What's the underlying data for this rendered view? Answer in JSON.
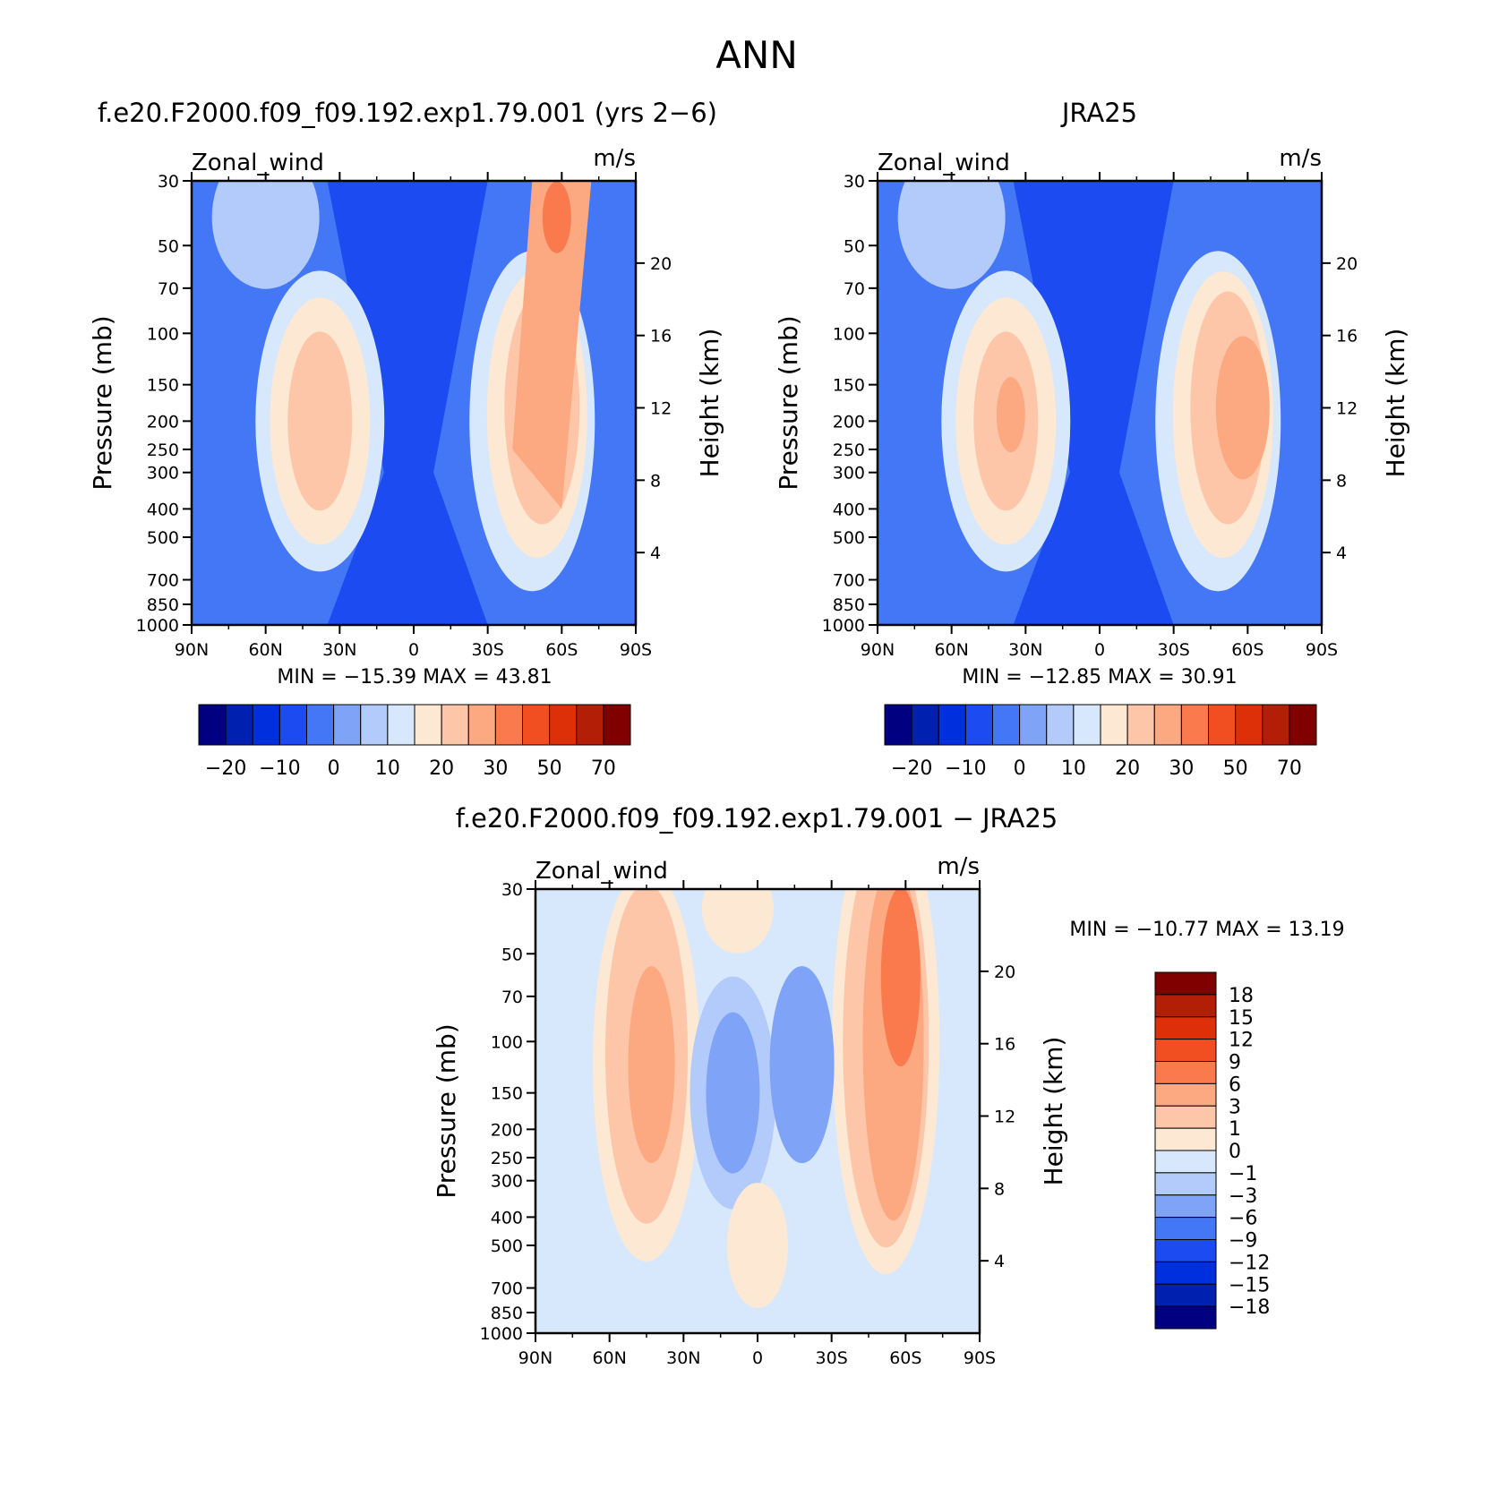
{
  "figure_title": "ANN",
  "chart_data": [
    {
      "type": "heatmap",
      "title": "f.e20.F2000.f09_f09.192.exp1.79.001 (yrs 2−6)",
      "variable_label": "Zonal_wind",
      "units_label": "m/s",
      "xlabel": "",
      "ylabel": "Pressure (mb)",
      "y2label": "Height (km)",
      "x_ticks": [
        "90N",
        "60N",
        "30N",
        "0",
        "30S",
        "60S",
        "90S"
      ],
      "y_ticks": [
        "30",
        "50",
        "70",
        "100",
        "150",
        "200",
        "250",
        "300",
        "400",
        "500",
        "700",
        "850",
        "1000"
      ],
      "y2_ticks": [
        "20",
        "16",
        "12",
        "8",
        "4"
      ],
      "stats_text": "MIN = −15.39   MAX =  43.81",
      "min": -15.39,
      "max": 43.81,
      "colorbar": {
        "orientation": "horizontal",
        "tick_labels": [
          "−20",
          "−10",
          "0",
          "10",
          "20",
          "30",
          "50",
          "70"
        ],
        "colors": [
          "#000080",
          "#0021b0",
          "#0030de",
          "#1c4bf2",
          "#4477f5",
          "#7ea3f7",
          "#b3cbfa",
          "#d8e8fc",
          "#fde8d4",
          "#fdc6a8",
          "#fca881",
          "#fa7a4e",
          "#f14f22",
          "#dd3008",
          "#b21f06",
          "#800000"
        ]
      }
    },
    {
      "type": "heatmap",
      "title": "JRA25",
      "variable_label": "Zonal_wind",
      "units_label": "m/s",
      "xlabel": "",
      "ylabel": "Pressure (mb)",
      "y2label": "Height (km)",
      "x_ticks": [
        "90N",
        "60N",
        "30N",
        "0",
        "30S",
        "60S",
        "90S"
      ],
      "y_ticks": [
        "30",
        "50",
        "70",
        "100",
        "150",
        "200",
        "250",
        "300",
        "400",
        "500",
        "700",
        "850",
        "1000"
      ],
      "y2_ticks": [
        "20",
        "16",
        "12",
        "8",
        "4"
      ],
      "stats_text": "MIN = −12.85   MAX =  30.91",
      "min": -12.85,
      "max": 30.91,
      "colorbar": {
        "orientation": "horizontal",
        "tick_labels": [
          "−20",
          "−10",
          "0",
          "10",
          "20",
          "30",
          "50",
          "70"
        ],
        "colors": [
          "#000080",
          "#0021b0",
          "#0030de",
          "#1c4bf2",
          "#4477f5",
          "#7ea3f7",
          "#b3cbfa",
          "#d8e8fc",
          "#fde8d4",
          "#fdc6a8",
          "#fca881",
          "#fa7a4e",
          "#f14f22",
          "#dd3008",
          "#b21f06",
          "#800000"
        ]
      }
    },
    {
      "type": "heatmap",
      "title": "f.e20.F2000.f09_f09.192.exp1.79.001 − JRA25",
      "variable_label": "Zonal_wind",
      "units_label": "m/s",
      "xlabel": "",
      "ylabel": "Pressure (mb)",
      "y2label": "Height (km)",
      "x_ticks": [
        "90N",
        "60N",
        "30N",
        "0",
        "30S",
        "60S",
        "90S"
      ],
      "y_ticks": [
        "30",
        "50",
        "70",
        "100",
        "150",
        "200",
        "250",
        "300",
        "400",
        "500",
        "700",
        "850",
        "1000"
      ],
      "y2_ticks": [
        "20",
        "16",
        "12",
        "8",
        "4"
      ],
      "stats_text": "MIN = −10.77   MAX =  13.19",
      "min": -10.77,
      "max": 13.19,
      "colorbar": {
        "orientation": "vertical",
        "tick_labels": [
          "18",
          "15",
          "12",
          "9",
          "6",
          "3",
          "1",
          "0",
          "−1",
          "−3",
          "−6",
          "−9",
          "−12",
          "−15",
          "−18"
        ],
        "colors": [
          "#800000",
          "#b21f06",
          "#dd3008",
          "#f14f22",
          "#fa7a4e",
          "#fca881",
          "#fdc6a8",
          "#fde8d4",
          "#d8e8fc",
          "#b3cbfa",
          "#7ea3f7",
          "#4477f5",
          "#1c4bf2",
          "#0030de",
          "#0021b0",
          "#000080"
        ]
      }
    }
  ]
}
